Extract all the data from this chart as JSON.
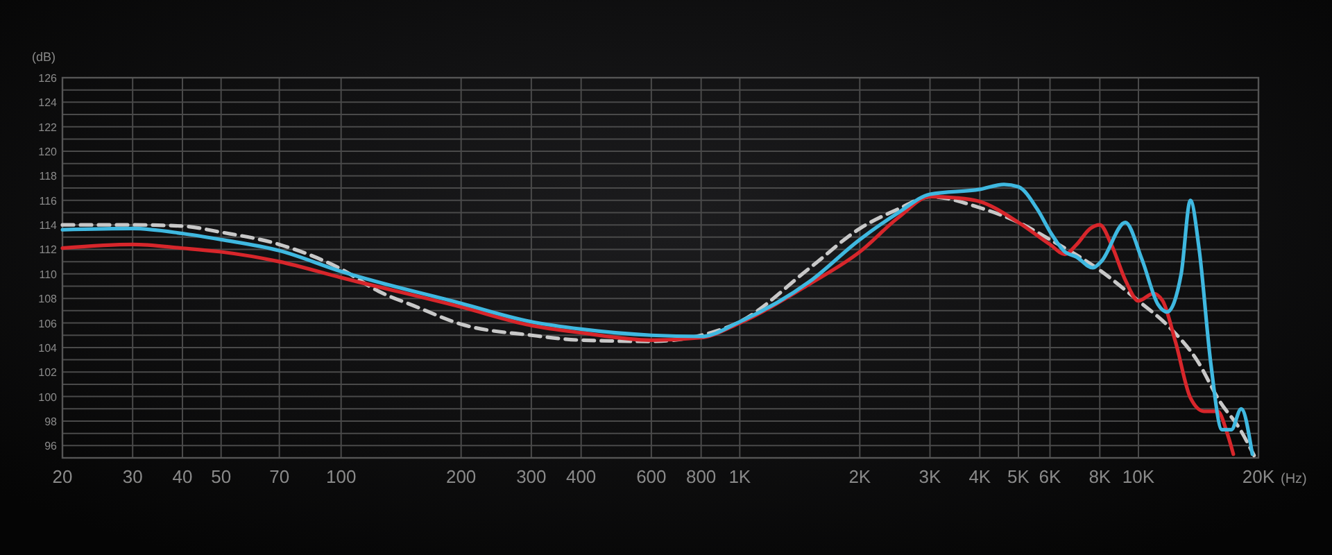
{
  "chart_data": {
    "type": "line",
    "xlabel": "(Hz)",
    "ylabel": "(dB)",
    "log": "x",
    "grid": true,
    "marker": "none",
    "xlim": [
      20,
      20000
    ],
    "ylim": [
      95,
      126
    ],
    "xticks": [
      20,
      30,
      40,
      50,
      70,
      100,
      200,
      300,
      400,
      600,
      800,
      {
        "value": 1000,
        "label": "1K"
      },
      {
        "value": 2000,
        "label": "2K"
      },
      {
        "value": 3000,
        "label": "3K"
      },
      {
        "value": 4000,
        "label": "4K"
      },
      {
        "value": 5000,
        "label": "5K"
      },
      {
        "value": 6000,
        "label": "6K"
      },
      {
        "value": 8000,
        "label": "8K"
      },
      {
        "value": 10000,
        "label": "10K"
      },
      {
        "value": 20000,
        "label": "20K"
      }
    ],
    "yticks": [
      96,
      {
        "value": 97,
        "label": null
      },
      98,
      {
        "value": 99,
        "label": null
      },
      100,
      {
        "value": 101,
        "label": null
      },
      102,
      {
        "value": 103,
        "label": null
      },
      104,
      {
        "value": 105,
        "label": null
      },
      106,
      {
        "value": 107,
        "label": null
      },
      108,
      {
        "value": 109,
        "label": null
      },
      110,
      {
        "value": 111,
        "label": null
      },
      112,
      {
        "value": 113,
        "label": null
      },
      114,
      {
        "value": 115,
        "label": null
      },
      116,
      {
        "value": 117,
        "label": null
      },
      118,
      {
        "value": 119,
        "label": null
      },
      120,
      {
        "value": 121,
        "label": null
      },
      122,
      {
        "value": 123,
        "label": null
      },
      124,
      {
        "value": 125,
        "label": null
      },
      126
    ],
    "series": [
      {
        "color": "#c8c8c8",
        "line_style": "dashed",
        "x": [
          20,
          30,
          40,
          50,
          70,
          100,
          124,
          155,
          200,
          300,
          400,
          600,
          800,
          1000,
          1500,
          2000,
          2500,
          3000,
          4000,
          5000,
          6000,
          8000,
          10000,
          12000,
          14000,
          16000,
          18000,
          19500
        ],
        "values": [
          114.0,
          114.0,
          113.9,
          113.4,
          112.4,
          110.4,
          108.6,
          107.3,
          105.9,
          105.0,
          104.6,
          104.5,
          105.0,
          106.1,
          110.5,
          113.7,
          115.3,
          116.3,
          115.4,
          114.2,
          112.8,
          110.3,
          107.8,
          105.6,
          103.0,
          99.6,
          97.3,
          95.2
        ]
      },
      {
        "color": "#d7262b",
        "line_style": "solid",
        "x": [
          20,
          30,
          40,
          50,
          70,
          100,
          200,
          300,
          400,
          600,
          800,
          1000,
          1500,
          2000,
          2500,
          3000,
          3500,
          4000,
          5000,
          6000,
          6540,
          7000,
          7570,
          8000,
          8550,
          9300,
          10000,
          10900,
          11500,
          12400,
          13500,
          14600,
          15800,
          16700,
          17300
        ],
        "values": [
          112.1,
          112.4,
          112.1,
          111.8,
          111.0,
          109.7,
          107.3,
          105.8,
          105.2,
          104.6,
          104.8,
          106.0,
          109.2,
          111.8,
          114.6,
          116.3,
          116.2,
          115.9,
          114.2,
          112.4,
          111.6,
          112.4,
          113.7,
          114.0,
          112.4,
          109.4,
          107.8,
          108.4,
          107.8,
          104.4,
          99.9,
          98.8,
          98.8,
          97.0,
          95.3
        ]
      },
      {
        "color": "#3fb8e0",
        "line_style": "solid",
        "x": [
          20,
          30,
          40,
          50,
          70,
          100,
          200,
          300,
          400,
          600,
          800,
          1000,
          1500,
          2000,
          2500,
          3000,
          4000,
          4600,
          5000,
          5570,
          6040,
          6540,
          6980,
          7680,
          8060,
          9270,
          10200,
          11200,
          11800,
          12800,
          13500,
          14200,
          15200,
          16200,
          17100,
          18100,
          19300
        ],
        "values": [
          113.6,
          113.7,
          113.3,
          112.8,
          111.9,
          110.2,
          107.6,
          106.1,
          105.5,
          105.0,
          104.9,
          106.1,
          109.4,
          112.8,
          115.0,
          116.5,
          116.9,
          117.3,
          117.1,
          115.3,
          113.3,
          111.8,
          111.4,
          110.5,
          111.0,
          114.2,
          111.2,
          107.5,
          106.9,
          110.0,
          116.0,
          112.0,
          102.6,
          97.3,
          97.3,
          99.0,
          95.3
        ]
      }
    ]
  }
}
